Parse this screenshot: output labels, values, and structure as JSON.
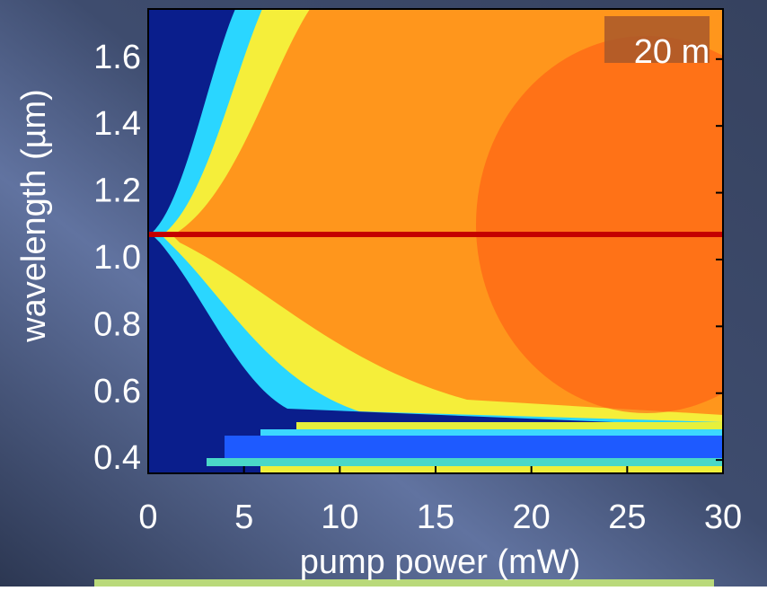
{
  "chart_data": {
    "type": "heatmap",
    "xlabel": "pump power (mW)",
    "ylabel": "wavelength (µm)",
    "annotation": "20 m",
    "xlim": [
      0,
      30
    ],
    "xticks": [
      0,
      5,
      10,
      15,
      20,
      25,
      30
    ],
    "ylim": [
      0.36,
      1.75
    ],
    "yticks": [
      0.4,
      0.6,
      0.8,
      {
        "value": 1,
        "label": "1.0"
      },
      1.2,
      1.4,
      1.6
    ]
  }
}
